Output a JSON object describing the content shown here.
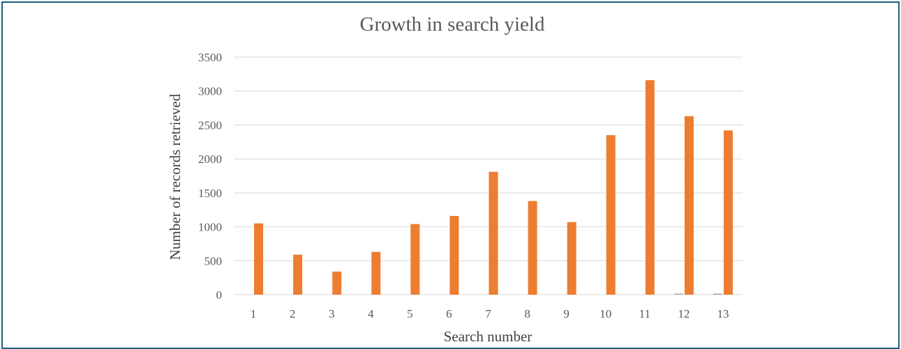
{
  "chart_data": {
    "type": "bar",
    "title": "Growth in search yield",
    "xlabel": "Search number",
    "ylabel": "Number of records retrieved",
    "ylim": [
      0,
      3500
    ],
    "yticks": [
      0,
      500,
      1000,
      1500,
      2000,
      2500,
      3000,
      3500
    ],
    "grid": true,
    "categories": [
      "1",
      "2",
      "3",
      "4",
      "5",
      "6",
      "7",
      "8",
      "9",
      "10",
      "11",
      "12",
      "13"
    ],
    "series": [
      {
        "color": "#a6a6a6",
        "values": [
          0,
          0,
          0,
          0,
          0,
          0,
          0,
          0,
          0,
          0,
          0,
          15,
          15
        ]
      },
      {
        "color": "#ed7d31",
        "values": [
          1050,
          590,
          340,
          630,
          1040,
          1160,
          1810,
          1380,
          1070,
          2350,
          3160,
          2630,
          2420
        ]
      }
    ]
  }
}
